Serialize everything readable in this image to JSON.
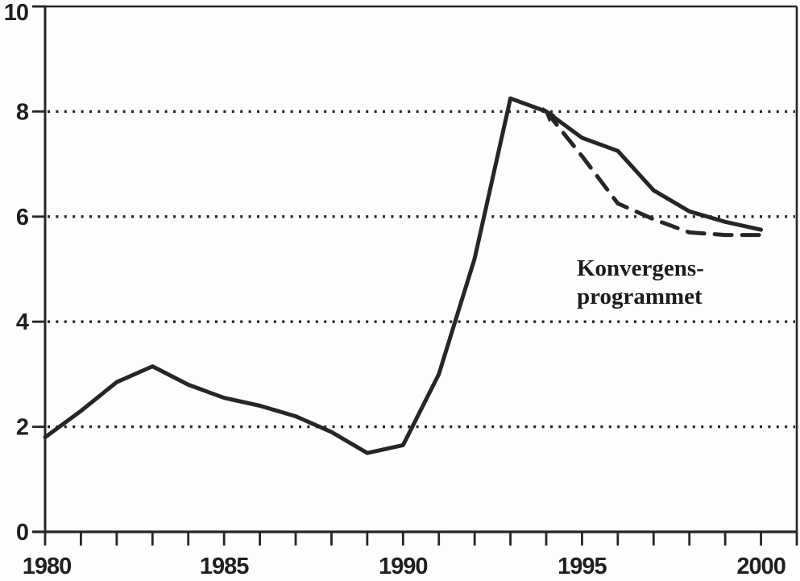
{
  "colors": {
    "ink": "#262626",
    "label_ink": "#1f1f1f",
    "background": "#fdfdfc"
  },
  "annotation": {
    "line1": "Konvergens-",
    "line2": "programmet"
  },
  "chart_data": {
    "type": "line",
    "title": "",
    "xlabel": "",
    "ylabel": "",
    "xlim": [
      1980,
      2001
    ],
    "ylim": [
      0,
      10
    ],
    "y_ticks": [
      0,
      2,
      4,
      6,
      8,
      10
    ],
    "y_tick_labels": [
      "0",
      "2",
      "4",
      "6",
      "8",
      "10"
    ],
    "y_dotted_gridlines": [
      2,
      4,
      6,
      8
    ],
    "x_minor_ticks": {
      "start": 1980,
      "end": 2001,
      "step": 1
    },
    "x_labeled_ticks": [
      1980,
      1985,
      1990,
      1995,
      2000
    ],
    "x_tick_labels": [
      "1980",
      "1985",
      "1990",
      "1995",
      "2000"
    ],
    "grid": "dotted-horizontal",
    "legend_position": "none",
    "series": [
      {
        "name": "historical-outcome-line",
        "label": "",
        "style": "solid",
        "x": [
          1980,
          1981,
          1982,
          1983,
          1984,
          1985,
          1986,
          1987,
          1988,
          1989,
          1990,
          1991,
          1992,
          1993,
          1994,
          1995,
          1996,
          1997,
          1998,
          1999,
          2000
        ],
        "values": [
          1.8,
          2.3,
          2.85,
          3.15,
          2.8,
          2.55,
          2.4,
          2.2,
          1.9,
          1.5,
          1.65,
          3.0,
          5.2,
          8.25,
          8.0,
          7.5,
          7.25,
          6.5,
          6.1,
          5.9,
          5.75
        ]
      },
      {
        "name": "konvergensprogrammet-line",
        "label": "Konvergensprogrammet",
        "style": "dashed",
        "x": [
          1994,
          1995,
          1996,
          1997,
          1998,
          1999,
          2000
        ],
        "values": [
          8.0,
          7.15,
          6.25,
          5.95,
          5.7,
          5.65,
          5.65
        ],
        "start_marker": {
          "x": 1994.1,
          "value": 7.95,
          "shape": "arrowhead"
        }
      }
    ]
  }
}
